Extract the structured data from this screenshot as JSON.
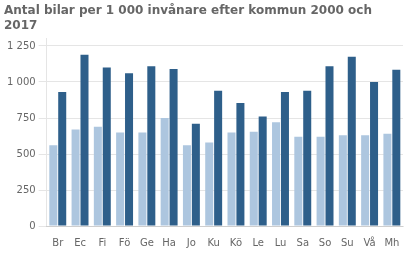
{
  "chart_data": {
    "type": "bar",
    "title": "Antal bilar per 1 000 invånare efter kommun 2000 och\n2017",
    "categories": [
      "Br",
      "Ec",
      "Fi",
      "Fö",
      "Ge",
      "Ha",
      "Jo",
      "Ku",
      "Kö",
      "Le",
      "Lu",
      "Sa",
      "So",
      "Su",
      "Vå",
      "Mh"
    ],
    "series": [
      {
        "color": "#adc6df",
        "values": [
          560,
          670,
          690,
          650,
          650,
          750,
          560,
          580,
          650,
          655,
          720,
          620,
          620,
          630,
          630,
          640
        ]
      },
      {
        "color": "#2e5f8a",
        "values": [
          930,
          1190,
          1100,
          1060,
          1110,
          1090,
          710,
          940,
          855,
          760,
          930,
          940,
          1110,
          1175,
          1000,
          1085
        ]
      }
    ],
    "ylim": [
      0,
      1300
    ],
    "yticks": [
      0,
      250,
      500,
      750,
      {
        "value": 1000,
        "label": "1 000"
      },
      {
        "value": 1250,
        "label": "1 250"
      }
    ],
    "grid": true
  }
}
